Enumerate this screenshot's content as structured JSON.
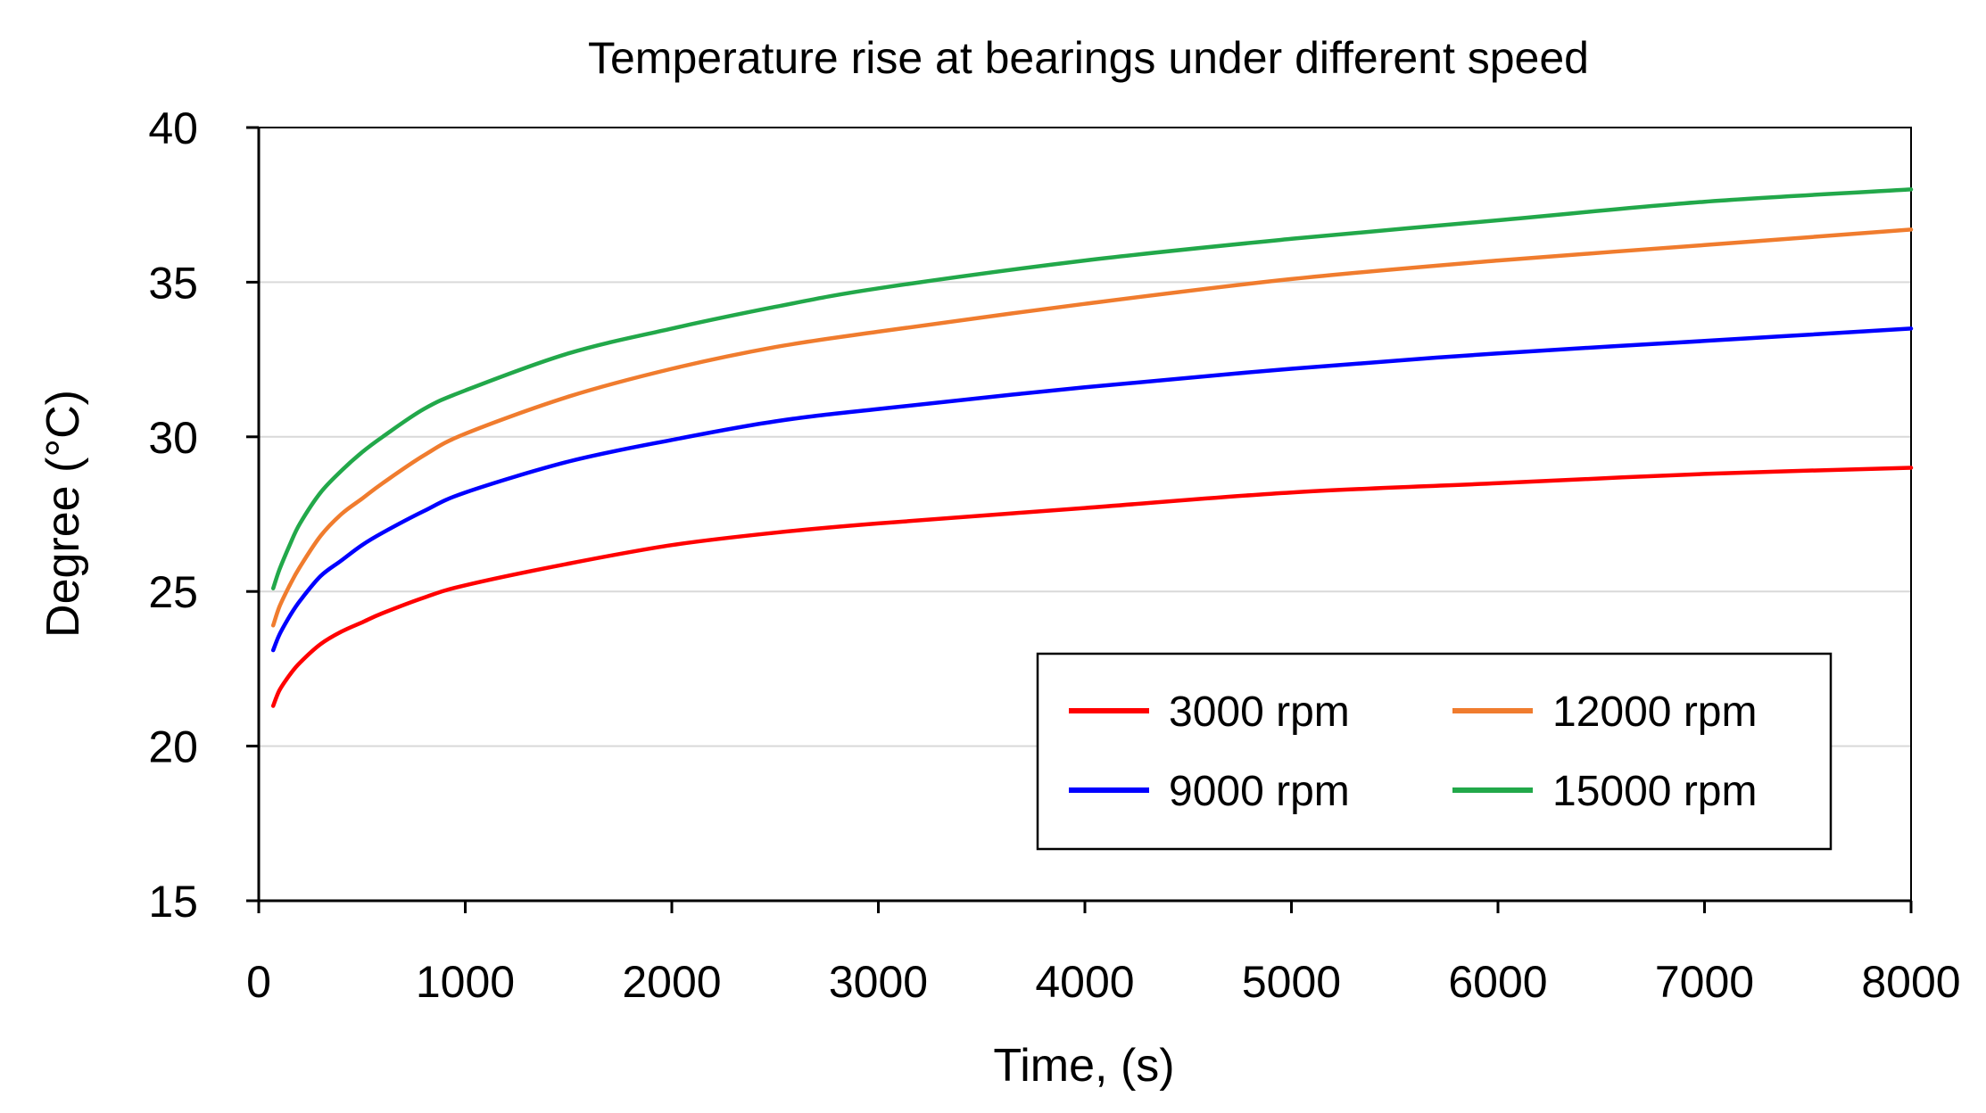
{
  "chart_data": {
    "type": "line",
    "title": "Temperature rise at  bearings under different speed",
    "xlabel": "Time, (s)",
    "ylabel": "Degree (°C)",
    "xlim": [
      0,
      8000
    ],
    "ylim": [
      15,
      40
    ],
    "xticks": [
      0,
      1000,
      2000,
      3000,
      4000,
      5000,
      6000,
      7000,
      8000
    ],
    "yticks": [
      15,
      20,
      25,
      30,
      35,
      40
    ],
    "grid": true,
    "legend_position": "bottom-right",
    "x": [
      70,
      100,
      150,
      200,
      300,
      400,
      500,
      600,
      800,
      1000,
      1500,
      2000,
      2500,
      3000,
      4000,
      5000,
      6000,
      7000,
      8000
    ],
    "series": [
      {
        "name": "3000 rpm",
        "color": "#ff0000",
        "values": [
          21.3,
          21.8,
          22.3,
          22.7,
          23.3,
          23.7,
          24.0,
          24.3,
          24.8,
          25.2,
          25.9,
          26.5,
          26.9,
          27.2,
          27.7,
          28.2,
          28.5,
          28.8,
          29.0
        ]
      },
      {
        "name": "9000 rpm",
        "color": "#0000ff",
        "values": [
          23.1,
          23.6,
          24.2,
          24.7,
          25.5,
          26.0,
          26.5,
          26.9,
          27.6,
          28.2,
          29.2,
          29.9,
          30.5,
          30.9,
          31.6,
          32.2,
          32.7,
          33.1,
          33.5
        ]
      },
      {
        "name": "12000 rpm",
        "color": "#f07c2e",
        "values": [
          23.9,
          24.5,
          25.2,
          25.8,
          26.8,
          27.5,
          28.0,
          28.5,
          29.4,
          30.1,
          31.3,
          32.2,
          32.9,
          33.4,
          34.3,
          35.1,
          35.7,
          36.2,
          36.7
        ]
      },
      {
        "name": "15000 rpm",
        "color": "#22a84a",
        "values": [
          25.1,
          25.7,
          26.5,
          27.2,
          28.2,
          28.9,
          29.5,
          30.0,
          30.9,
          31.5,
          32.7,
          33.5,
          34.2,
          34.8,
          35.7,
          36.4,
          37.0,
          37.6,
          38.0
        ]
      }
    ]
  }
}
